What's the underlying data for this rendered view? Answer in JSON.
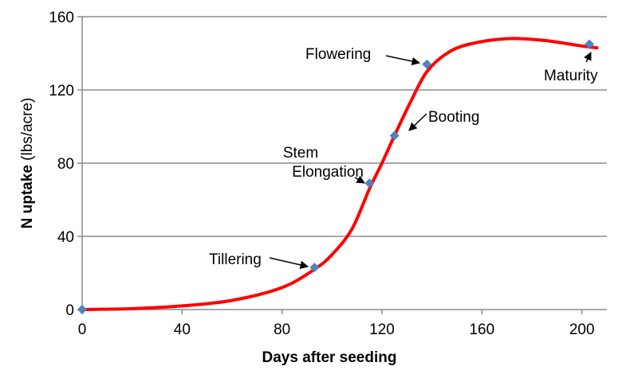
{
  "chart_data": {
    "type": "line",
    "title": "",
    "xlabel": "Days after seeding",
    "ylabel_bold": "N uptake",
    "ylabel_unit": " (lbs/acre)",
    "xlim": [
      0,
      210
    ],
    "ylim": [
      0,
      160
    ],
    "xticks": [
      0,
      40,
      80,
      120,
      160,
      200
    ],
    "yticks": [
      0,
      40,
      80,
      120,
      160
    ],
    "grid": "horizontal",
    "colors": {
      "curve": "#ff0000",
      "points": "#4f81bd",
      "grid": "#8c8c8c",
      "text": "#000000"
    },
    "curve": {
      "x": [
        0,
        20,
        40,
        60,
        80,
        93,
        100,
        108,
        115,
        120,
        125,
        132,
        138,
        146,
        155,
        170,
        185,
        200,
        206
      ],
      "y": [
        0,
        0.5,
        2,
        5,
        12,
        22,
        30,
        44,
        66,
        80,
        95,
        115,
        130,
        140,
        145,
        148,
        147,
        144,
        143
      ]
    },
    "points": [
      {
        "x": 0,
        "y": 0,
        "label": ""
      },
      {
        "x": 93,
        "y": 23,
        "label": "Tillering"
      },
      {
        "x": 115,
        "y": 69,
        "label": "Stem Elongation",
        "lines": [
          "Stem",
          "Elongation"
        ]
      },
      {
        "x": 125,
        "y": 95,
        "label": "Booting"
      },
      {
        "x": 138,
        "y": 134,
        "label": "Flowering"
      },
      {
        "x": 203,
        "y": 145,
        "label": "Maturity"
      }
    ]
  }
}
